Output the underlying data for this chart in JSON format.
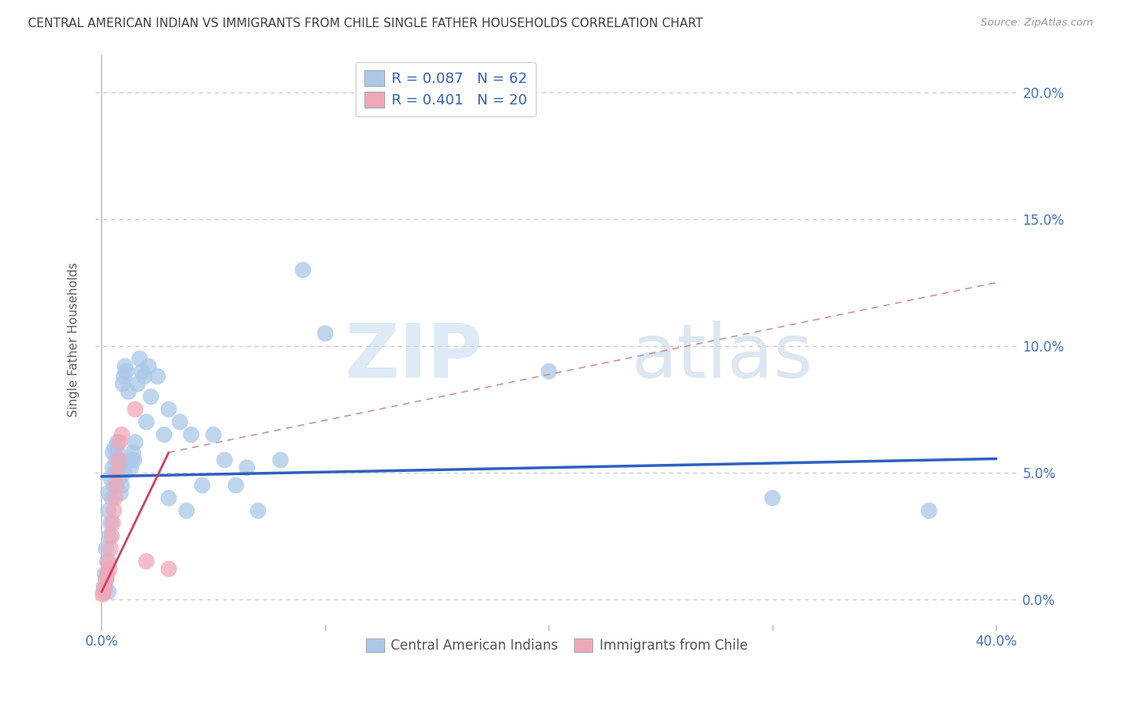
{
  "title": "CENTRAL AMERICAN INDIAN VS IMMIGRANTS FROM CHILE SINGLE FATHER HOUSEHOLDS CORRELATION CHART",
  "source": "Source: ZipAtlas.com",
  "ylabel": "Single Father Households",
  "ytick_values": [
    0.0,
    5.0,
    10.0,
    15.0,
    20.0
  ],
  "xtick_positions": [
    0.0,
    10.0,
    20.0,
    30.0,
    40.0
  ],
  "xlim": [
    -0.3,
    41.0
  ],
  "ylim": [
    -1.0,
    21.5
  ],
  "legend_r1": "R = 0.087",
  "legend_n1": "N = 62",
  "legend_r2": "R = 0.401",
  "legend_n2": "N = 20",
  "blue_color": "#aac8e8",
  "pink_color": "#f0a8b8",
  "blue_line_color": "#3060c0",
  "pink_line_color": "#d04060",
  "pink_dash_color": "#d0909a",
  "blue_scatter": [
    [
      0.1,
      0.5
    ],
    [
      0.15,
      1.0
    ],
    [
      0.2,
      0.8
    ],
    [
      0.2,
      2.0
    ],
    [
      0.25,
      1.5
    ],
    [
      0.3,
      0.3
    ],
    [
      0.3,
      3.5
    ],
    [
      0.3,
      4.2
    ],
    [
      0.35,
      2.5
    ],
    [
      0.4,
      3.0
    ],
    [
      0.4,
      4.8
    ],
    [
      0.45,
      4.0
    ],
    [
      0.5,
      5.2
    ],
    [
      0.5,
      5.8
    ],
    [
      0.55,
      4.5
    ],
    [
      0.6,
      5.0
    ],
    [
      0.6,
      6.0
    ],
    [
      0.65,
      5.5
    ],
    [
      0.7,
      5.8
    ],
    [
      0.7,
      6.2
    ],
    [
      0.75,
      5.2
    ],
    [
      0.8,
      4.8
    ],
    [
      0.8,
      5.5
    ],
    [
      0.85,
      4.2
    ],
    [
      0.9,
      4.5
    ],
    [
      0.95,
      8.5
    ],
    [
      1.0,
      5.0
    ],
    [
      1.0,
      8.8
    ],
    [
      1.05,
      9.2
    ],
    [
      1.1,
      9.0
    ],
    [
      1.2,
      8.2
    ],
    [
      1.3,
      5.2
    ],
    [
      1.35,
      5.5
    ],
    [
      1.4,
      5.8
    ],
    [
      1.45,
      5.5
    ],
    [
      1.5,
      6.2
    ],
    [
      1.6,
      8.5
    ],
    [
      1.7,
      9.5
    ],
    [
      1.8,
      9.0
    ],
    [
      1.9,
      8.8
    ],
    [
      2.0,
      7.0
    ],
    [
      2.1,
      9.2
    ],
    [
      2.2,
      8.0
    ],
    [
      2.5,
      8.8
    ],
    [
      2.8,
      6.5
    ],
    [
      3.0,
      7.5
    ],
    [
      3.0,
      4.0
    ],
    [
      3.5,
      7.0
    ],
    [
      3.8,
      3.5
    ],
    [
      4.0,
      6.5
    ],
    [
      4.5,
      4.5
    ],
    [
      5.0,
      6.5
    ],
    [
      5.5,
      5.5
    ],
    [
      6.0,
      4.5
    ],
    [
      6.5,
      5.2
    ],
    [
      7.0,
      3.5
    ],
    [
      8.0,
      5.5
    ],
    [
      9.0,
      13.0
    ],
    [
      10.0,
      10.5
    ],
    [
      20.0,
      9.0
    ],
    [
      30.0,
      4.0
    ],
    [
      37.0,
      3.5
    ]
  ],
  "pink_scatter": [
    [
      0.05,
      0.2
    ],
    [
      0.1,
      0.3
    ],
    [
      0.15,
      0.5
    ],
    [
      0.2,
      0.8
    ],
    [
      0.25,
      1.0
    ],
    [
      0.3,
      1.5
    ],
    [
      0.35,
      1.2
    ],
    [
      0.4,
      2.0
    ],
    [
      0.45,
      2.5
    ],
    [
      0.5,
      3.0
    ],
    [
      0.55,
      3.5
    ],
    [
      0.6,
      4.0
    ],
    [
      0.65,
      4.5
    ],
    [
      0.7,
      5.0
    ],
    [
      0.75,
      5.5
    ],
    [
      0.8,
      6.2
    ],
    [
      0.9,
      6.5
    ],
    [
      1.5,
      7.5
    ],
    [
      2.0,
      1.5
    ],
    [
      3.0,
      1.2
    ]
  ],
  "blue_line_start_x": 0.0,
  "blue_line_start_y": 4.85,
  "blue_line_end_x": 40.0,
  "blue_line_end_y": 5.55,
  "pink_solid_start_x": 0.0,
  "pink_solid_start_y": 0.3,
  "pink_solid_end_x": 3.0,
  "pink_solid_end_y": 5.8,
  "pink_dash_start_x": 3.0,
  "pink_dash_start_y": 5.8,
  "pink_dash_end_x": 40.0,
  "pink_dash_end_y": 12.5,
  "watermark_zip": "ZIP",
  "watermark_atlas": "atlas",
  "background_color": "#ffffff",
  "grid_color": "#c8c8c8",
  "tick_label_color": "#4472c4",
  "title_color": "#404040",
  "ylabel_color": "#606060"
}
